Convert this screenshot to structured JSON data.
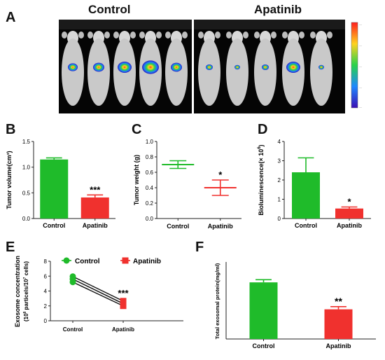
{
  "panel_a": {
    "letter": "A",
    "left_label": "Control",
    "right_label": "Apatinib",
    "mice_per_group": 5
  },
  "colors": {
    "control": "#1fbb2a",
    "apatinib": "#f0312e"
  },
  "chart_data": [
    {
      "id": "B",
      "type": "bar",
      "letter": "B",
      "categories": [
        "Control",
        "Apatinib"
      ],
      "values": [
        1.15,
        0.41
      ],
      "errors": [
        0.03,
        0.05
      ],
      "ylabel": "Tumor volume(cm³)",
      "ylim": [
        0,
        1.5
      ],
      "yticks": [
        "0.0",
        "0.5",
        "1.0",
        "1.5"
      ],
      "significance": {
        "Apatinib": "***"
      }
    },
    {
      "id": "C",
      "type": "scatter",
      "letter": "C",
      "categories": [
        "Control",
        "Apatinib"
      ],
      "values": [
        0.7,
        0.4
      ],
      "errors": [
        0.05,
        0.1
      ],
      "ylabel": "Tumor weight (g)",
      "ylim": [
        0.0,
        1.0
      ],
      "yticks": [
        "0.0",
        "0.2",
        "0.4",
        "0.6",
        "0.8",
        "1.0"
      ],
      "significance": {
        "Apatinib": "*"
      }
    },
    {
      "id": "D",
      "type": "bar",
      "letter": "D",
      "categories": [
        "Control",
        "Apatinib"
      ],
      "values": [
        2.4,
        0.52
      ],
      "errors": [
        0.75,
        0.08
      ],
      "ylabel_main": "Bioluminescence(× 10",
      "ylabel_sup": "6",
      "ylabel_end": ")",
      "ylim": [
        0,
        4
      ],
      "yticks": [
        "0",
        "1",
        "2",
        "3",
        "4"
      ],
      "significance": {
        "Apatinib": "*"
      }
    },
    {
      "id": "E",
      "type": "line",
      "letter": "E",
      "categories": [
        "Control",
        "Apatinib"
      ],
      "series": [
        {
          "values": [
            5.95,
            2.65
          ]
        },
        {
          "values": [
            5.6,
            2.3
          ]
        },
        {
          "values": [
            5.2,
            2.0
          ]
        }
      ],
      "legend": [
        "Control",
        "Apatinib"
      ],
      "ylabel_line1": "Exosome concentration",
      "ylabel_line2_a": "(10",
      "ylabel_line2_sup1": "8",
      "ylabel_line2_b": " particels/10",
      "ylabel_line2_sup2": "7",
      "ylabel_line2_c": " cells)",
      "ylim": [
        0,
        8
      ],
      "yticks": [
        "0",
        "2",
        "4",
        "6",
        "8"
      ],
      "significance": {
        "Apatinib": "***"
      }
    },
    {
      "id": "F",
      "type": "bar",
      "letter": "F",
      "categories": [
        "Control",
        "Apatinib"
      ],
      "values": [
        1.47,
        0.77
      ],
      "errors": [
        0.07,
        0.07
      ],
      "ylabel": "Total exosomal protein(mg/ml)",
      "ylim": [
        0,
        2.0
      ],
      "yticks": [],
      "significance": {
        "Apatinib": "**"
      }
    }
  ]
}
